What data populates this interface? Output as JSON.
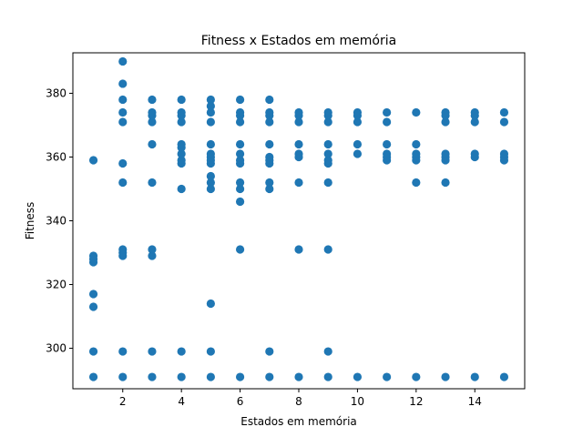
{
  "chart_data": {
    "type": "scatter",
    "title": "Fitness x Estados em memória",
    "xlabel": "Estados em memória",
    "ylabel": "Fitness",
    "xlim": [
      0.3,
      15.7
    ],
    "ylim": [
      287.3,
      392.7
    ],
    "xticks": [
      "2",
      "4",
      "6",
      "8",
      "10",
      "12",
      "14"
    ],
    "yticks": [
      "300",
      "320",
      "340",
      "360",
      "380"
    ],
    "grid": false,
    "marker_color": "#1f77b4",
    "points": [
      [
        1,
        291
      ],
      [
        1,
        299
      ],
      [
        1,
        313
      ],
      [
        1,
        317
      ],
      [
        1,
        327
      ],
      [
        1,
        328
      ],
      [
        1,
        329
      ],
      [
        1,
        359
      ],
      [
        2,
        291
      ],
      [
        2,
        299
      ],
      [
        2,
        329
      ],
      [
        2,
        330
      ],
      [
        2,
        331
      ],
      [
        2,
        352
      ],
      [
        2,
        358
      ],
      [
        2,
        371
      ],
      [
        2,
        374
      ],
      [
        2,
        378
      ],
      [
        2,
        383
      ],
      [
        2,
        390
      ],
      [
        3,
        291
      ],
      [
        3,
        299
      ],
      [
        3,
        329
      ],
      [
        3,
        331
      ],
      [
        3,
        352
      ],
      [
        3,
        364
      ],
      [
        3,
        371
      ],
      [
        3,
        373
      ],
      [
        3,
        374
      ],
      [
        3,
        378
      ],
      [
        4,
        291
      ],
      [
        4,
        299
      ],
      [
        4,
        350
      ],
      [
        4,
        358
      ],
      [
        4,
        359
      ],
      [
        4,
        361
      ],
      [
        4,
        363
      ],
      [
        4,
        364
      ],
      [
        4,
        371
      ],
      [
        4,
        373
      ],
      [
        4,
        374
      ],
      [
        4,
        378
      ],
      [
        5,
        291
      ],
      [
        5,
        299
      ],
      [
        5,
        314
      ],
      [
        5,
        350
      ],
      [
        5,
        352
      ],
      [
        5,
        354
      ],
      [
        5,
        358
      ],
      [
        5,
        359
      ],
      [
        5,
        360
      ],
      [
        5,
        361
      ],
      [
        5,
        364
      ],
      [
        5,
        371
      ],
      [
        5,
        374
      ],
      [
        5,
        376
      ],
      [
        5,
        378
      ],
      [
        6,
        291
      ],
      [
        6,
        331
      ],
      [
        6,
        346
      ],
      [
        6,
        350
      ],
      [
        6,
        352
      ],
      [
        6,
        358
      ],
      [
        6,
        359
      ],
      [
        6,
        361
      ],
      [
        6,
        364
      ],
      [
        6,
        371
      ],
      [
        6,
        373
      ],
      [
        6,
        374
      ],
      [
        6,
        378
      ],
      [
        7,
        291
      ],
      [
        7,
        299
      ],
      [
        7,
        350
      ],
      [
        7,
        352
      ],
      [
        7,
        358
      ],
      [
        7,
        359
      ],
      [
        7,
        360
      ],
      [
        7,
        364
      ],
      [
        7,
        371
      ],
      [
        7,
        373
      ],
      [
        7,
        374
      ],
      [
        7,
        378
      ],
      [
        8,
        291
      ],
      [
        8,
        331
      ],
      [
        8,
        352
      ],
      [
        8,
        360
      ],
      [
        8,
        361
      ],
      [
        8,
        364
      ],
      [
        8,
        371
      ],
      [
        8,
        373
      ],
      [
        8,
        374
      ],
      [
        9,
        291
      ],
      [
        9,
        299
      ],
      [
        9,
        331
      ],
      [
        9,
        352
      ],
      [
        9,
        358
      ],
      [
        9,
        359
      ],
      [
        9,
        361
      ],
      [
        9,
        364
      ],
      [
        9,
        371
      ],
      [
        9,
        373
      ],
      [
        9,
        374
      ],
      [
        10,
        291
      ],
      [
        10,
        361
      ],
      [
        10,
        364
      ],
      [
        10,
        371
      ],
      [
        10,
        373
      ],
      [
        10,
        374
      ],
      [
        11,
        291
      ],
      [
        11,
        359
      ],
      [
        11,
        360
      ],
      [
        11,
        361
      ],
      [
        11,
        364
      ],
      [
        11,
        371
      ],
      [
        11,
        374
      ],
      [
        12,
        291
      ],
      [
        12,
        352
      ],
      [
        12,
        359
      ],
      [
        12,
        360
      ],
      [
        12,
        361
      ],
      [
        12,
        364
      ],
      [
        12,
        374
      ],
      [
        13,
        291
      ],
      [
        13,
        352
      ],
      [
        13,
        359
      ],
      [
        13,
        360
      ],
      [
        13,
        361
      ],
      [
        13,
        371
      ],
      [
        13,
        373
      ],
      [
        13,
        374
      ],
      [
        14,
        291
      ],
      [
        14,
        360
      ],
      [
        14,
        361
      ],
      [
        14,
        371
      ],
      [
        14,
        373
      ],
      [
        14,
        374
      ],
      [
        15,
        291
      ],
      [
        15,
        359
      ],
      [
        15,
        360
      ],
      [
        15,
        361
      ],
      [
        15,
        371
      ],
      [
        15,
        374
      ]
    ]
  }
}
